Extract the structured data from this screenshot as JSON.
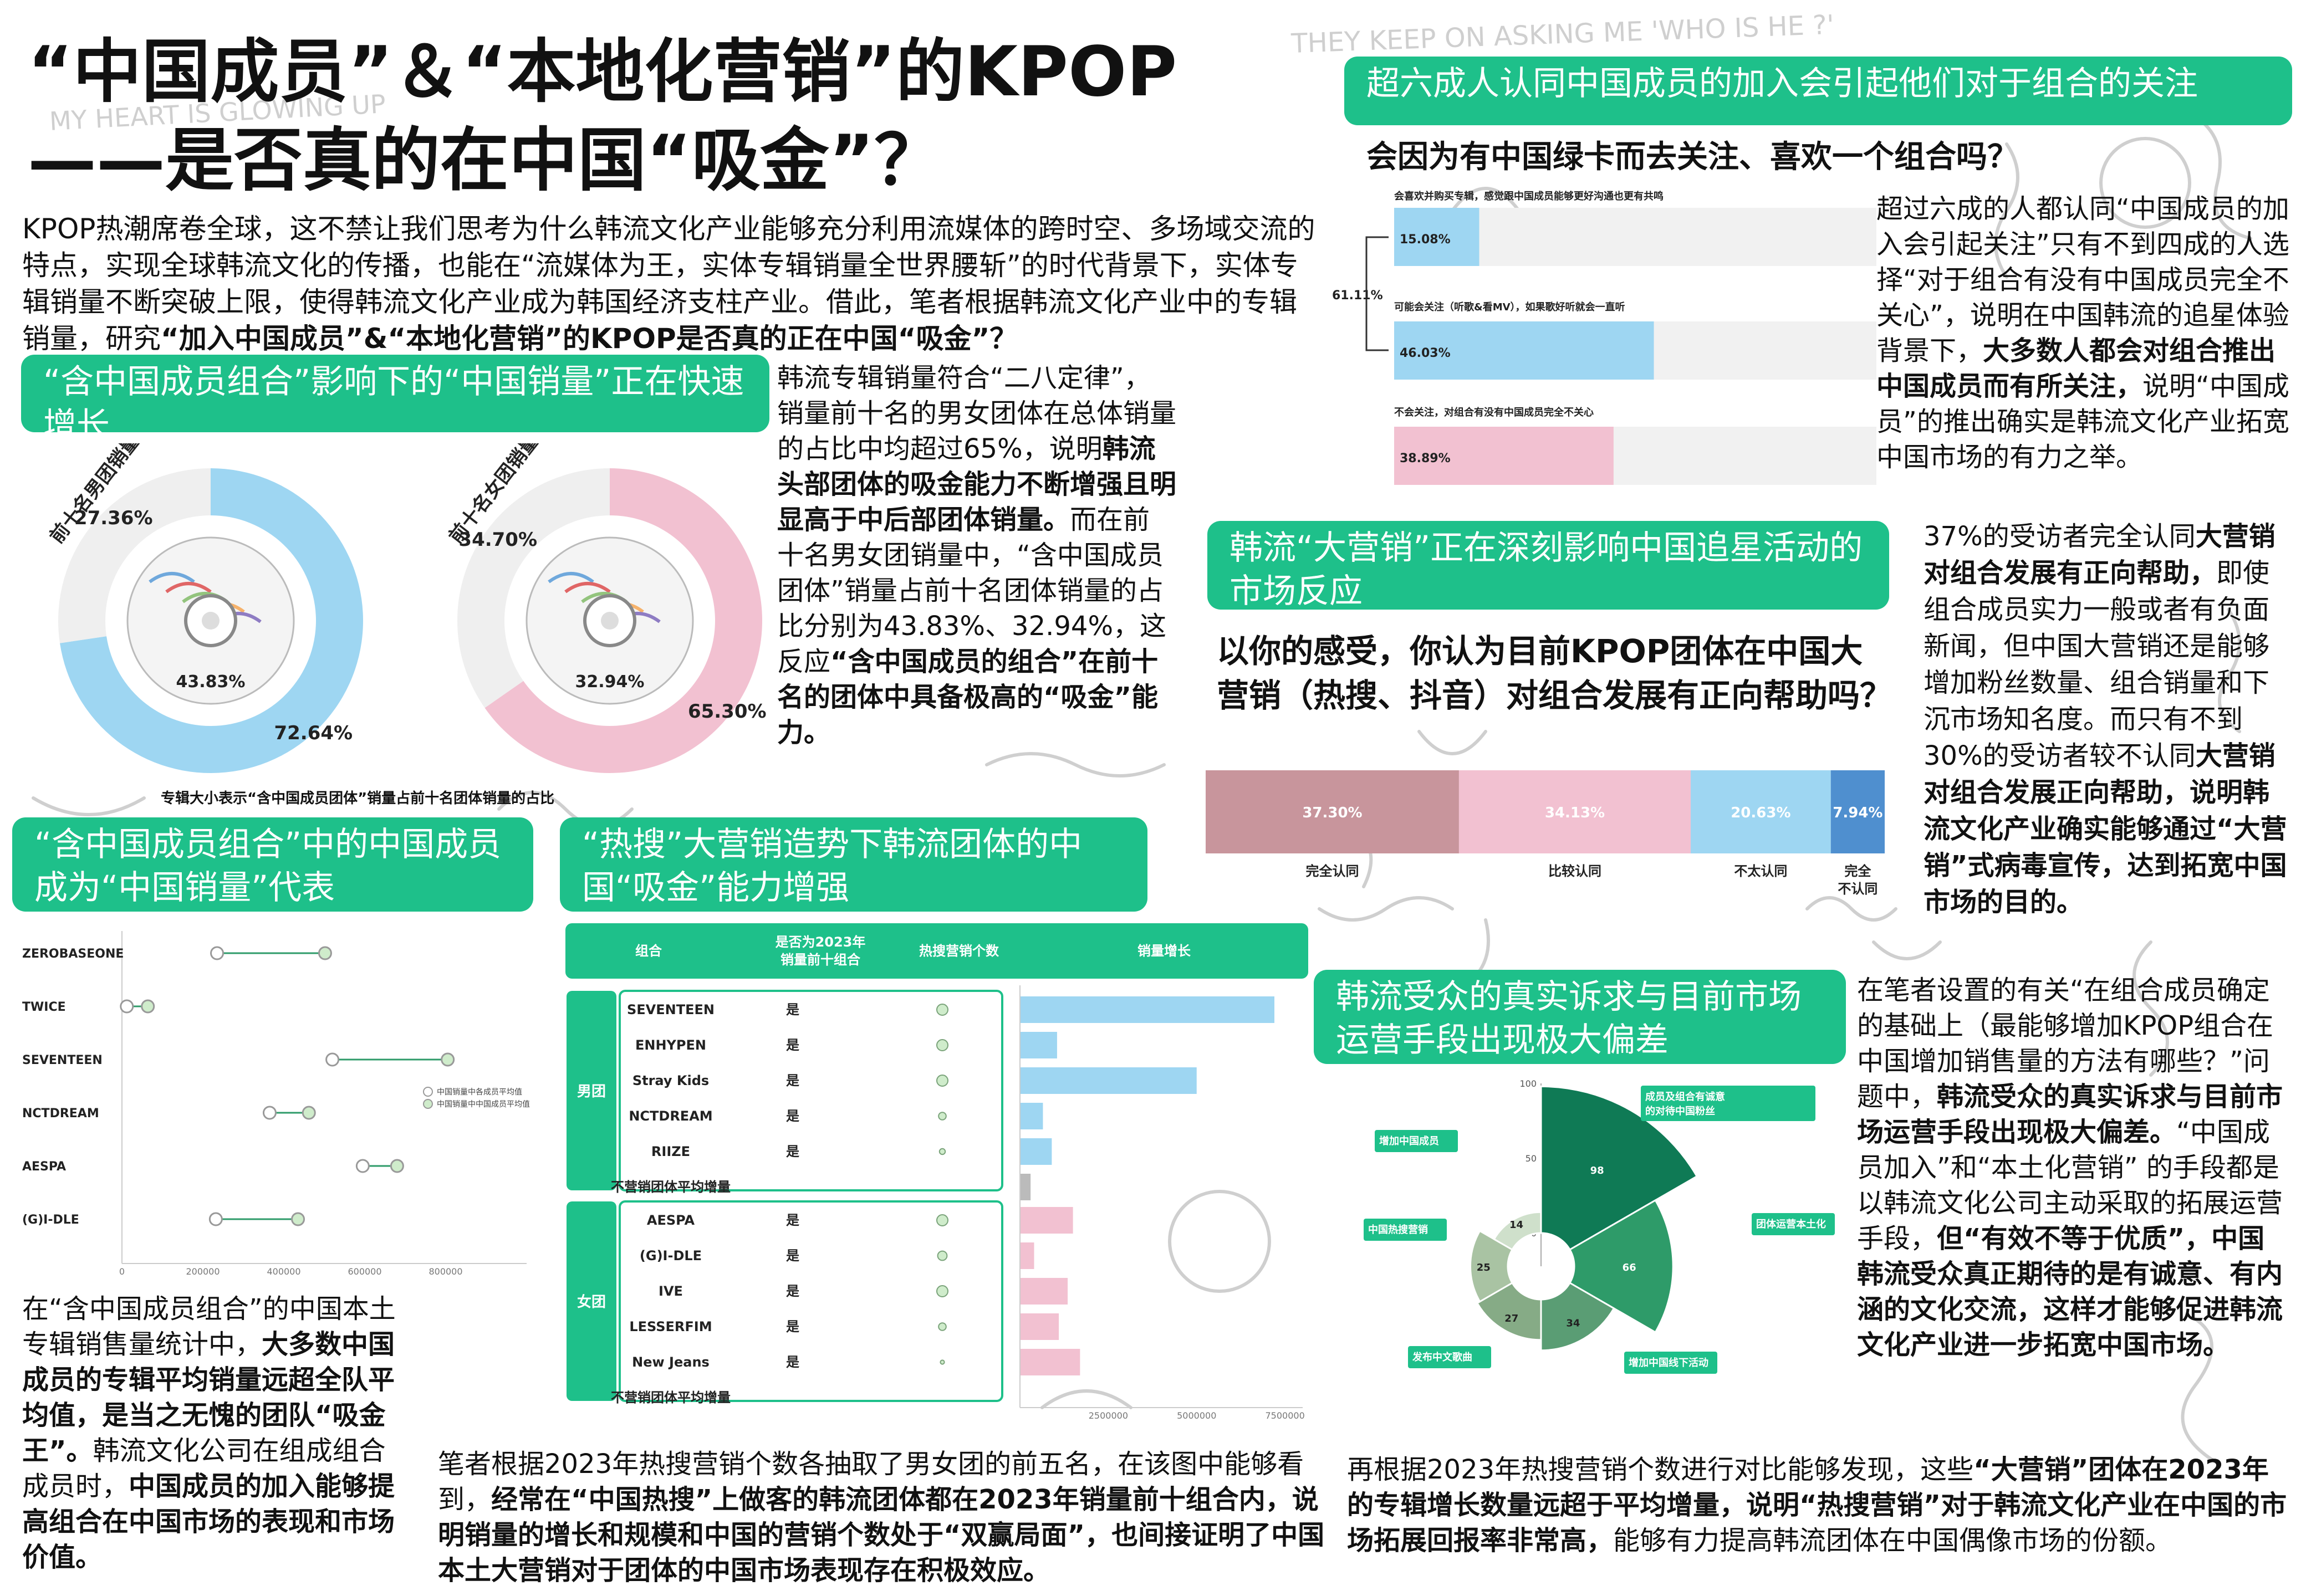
{
  "title": {
    "line1": "“中国成员”＆“本地化营销”的KPOP",
    "line2": "——是否真的在中国“吸金”？"
  },
  "intro": {
    "p1": "KPOP热潮席卷全球，这不禁让我们思考为什么韩流文化产业能够充分利用流媒体的跨时空、多场域交流的特点，实现全球韩流文化的传播，也能在“流媒体为王，实体专辑销量全世界腰斩”的时代背景下，实体专辑销量不断突破上限，使得韩流文化产业成为韩国经济支柱产业。借此，笔者根据韩流文化产业中的专辑销量，研究",
    "p1_bold": "“加入中国成员”&“本地化营销”的KPOP是否真的正在中国“吸金”？"
  },
  "doodle": {
    "top_right": "THEY KEEP ON ASKING ME 'WHO IS HE ?'",
    "top_left": "MY HEART IS GLOWING UP"
  },
  "section1": {
    "banner": "“含中国成员组合”影响下的“中国销量”正在快速增长",
    "caption": "专辑大小表示“含中国成员团体”销量占前十名团体销量的占比",
    "text_a": "韩流专辑销量符合“二八定律”，销量前十名的男女团体在总体销量的占比中均超过65%，说明",
    "text_b": "韩流头部团体的吸金能力不断增强且明显高于中后部团体销量。",
    "text_c": "而在前十名男女团销量中，“含中国成员团体”销量占前十名团体销量的占比分别为43.83%、32.94%，这反应",
    "text_d": "“含中国成员的组合”在前十名的团体中具备极高的“吸金”能力。"
  },
  "section2": {
    "banner": "“含中国成员组合”中的中国成员成为“中国销量”代表",
    "text_a": "在“含中国成员组合”的中国本土专辑销售量统计中，",
    "text_b": "大多数中国成员的专辑平均销量远超全队平均值，是当之无愧的团队“吸金王”。",
    "text_c": "韩流文化公司在组成组合成员时，",
    "text_d": "中国成员的加入能够提高组合在中国市场的表现和市场价值。"
  },
  "section3": {
    "banner": "“热搜”大营销造势下韩流团体的中国“吸金”能力增强",
    "text_a": "笔者根据2023年热搜营销个数各抽取了男女团的前五名，在该图中能够看到，",
    "text_b": "经常在“中国热搜”上做客的韩流团体都在2023年销量前十组合内，说明销量的增长和规模和中国的营销个数处于“双赢局面”，也间接证明了中国本土大营销对于团体的中国市场表现存在积极效应。"
  },
  "section4": {
    "banner": "超六成人认同中国成员的加入会引起他们对于组合的关注",
    "question": "会因为有中国绿卡而去关注、喜欢一个组合吗？",
    "text_a": "超过六成的人都认同“中国成员的加入会引起关注”只有不到四成的人选择“对于组合有没有中国成员完全不关心”，说明在中国韩流的追星体验背景下，",
    "text_b": "大多数人都会对组合推出中国成员而有所关注，",
    "text_c": "说明“中国成员”的推出确实是韩流文化产业拓宽中国市场的有力之举。"
  },
  "section5": {
    "banner": "韩流“大营销”正在深刻影响中国追星活动的市场反应",
    "question": "以你的感受，你认为目前KPOP团体在中国大营销（热搜、抖音）对组合发展有正向帮助吗？",
    "text_a": "37%的受访者完全认同",
    "text_b": "大营销对组合发展有正向帮助，",
    "text_c": "即使组合成员实力一般或者有负面新闻，但中国大营销还是能够增加粉丝数量、组合销量和下沉市场知名度。而只有不到30%的受访者较不认同",
    "text_d": "大营销对组合发展正向帮助，说明韩流文化产业确实能够通过“大营销”式病毒宣传，达到拓宽中国市场的目的。"
  },
  "section6": {
    "banner": "韩流受众的真实诉求与目前市场运营手段出现极大偏差",
    "text_a": "在笔者设置的有关“在组合成员确定的基础上（最能够增加KPOP组合在中国增加销售量的方法有哪些？”问题中，",
    "text_b": "韩流受众的真实诉求与目前市场运营手段出现极大偏差。",
    "text_c": "“中国成员加入”和“本土化营销” 的手段都是以韩流文化公司主动采取的拓展运营手段，",
    "text_d": "但“有效不等于优质”，中国韩流受众真正期待的是有诚意、有内涵的文化交流，这样才能够促进韩流文化产业进一步拓宽中国市场。"
  },
  "section7": {
    "text_a": "再根据2023年热搜营销个数进行对比能够发现，这些",
    "text_b": "“大营销”团体在2023年的专辑增长数量远超于平均增量，说明“热搜营销”对于韩流文化产业在中国的市场拓展回报率非常高，",
    "text_c": "能够有力提高韩流团体在中国偶像市场的份额。"
  },
  "chart_data": [
    {
      "type": "pie",
      "title": "前十名男团销量占男团总体销量比例",
      "slices": [
        {
          "label": "72.64%",
          "value": 72.64
        },
        {
          "label": "27.36%",
          "value": 27.36
        }
      ],
      "inner_label": "43.83%",
      "colors": [
        "#9ed6f2",
        "#efefef"
      ]
    },
    {
      "type": "pie",
      "title": "前十名女团销量占女团总体销量比例",
      "slices": [
        {
          "label": "65.30%",
          "value": 65.3
        },
        {
          "label": "34.70%",
          "value": 34.7
        }
      ],
      "inner_label": "32.94%",
      "colors": [
        "#f2c1d1",
        "#efefef"
      ]
    },
    {
      "type": "scatter",
      "subtype": "dumbbell",
      "categories": [
        "ZEROBASEONE",
        "TWICE",
        "SEVENTEEN",
        "NCTDREAM",
        "AESPA",
        "(G)I-DLE"
      ],
      "series": [
        {
          "name": "中国销量中各成员平均值",
          "values": [
            235000,
            12000,
            520000,
            365000,
            595000,
            232000
          ]
        },
        {
          "name": "中国销量中中国成员平均值",
          "values": [
            502000,
            64000,
            805000,
            462000,
            680000,
            435000
          ]
        }
      ],
      "xlim": [
        0,
        1000000
      ],
      "xticks": [
        "0",
        "200000",
        "400000",
        "600000",
        "800000"
      ],
      "colors": [
        "#ffffff",
        "#cfeccb"
      ]
    },
    {
      "type": "table",
      "columns": [
        "组合",
        "是否为2023年销量前十组合",
        "热搜营销个数",
        "销量增长"
      ],
      "groups": [
        {
          "name": "男团",
          "color": "#9ed6f2",
          "rows": [
            {
              "name": "SEVENTEEN",
              "top10": "是",
              "hot": 5,
              "growth": 7200000
            },
            {
              "name": "ENHYPEN",
              "top10": "是",
              "hot": 5,
              "growth": 1050000
            },
            {
              "name": "Stray Kids",
              "top10": "是",
              "hot": 5,
              "growth": 5000000
            },
            {
              "name": "NCTDREAM",
              "top10": "是",
              "hot": 3,
              "growth": 650000
            },
            {
              "name": "RIIZE",
              "top10": "是",
              "hot": 2,
              "growth": 900000
            },
            {
              "name": "不营销团体平均增量",
              "top10": "",
              "hot": 0,
              "growth": 300000
            }
          ]
        },
        {
          "name": "女团",
          "color": "#f2c1d1",
          "rows": [
            {
              "name": "AESPA",
              "top10": "是",
              "hot": 5,
              "growth": 1500000
            },
            {
              "name": "(G)I-DLE",
              "top10": "是",
              "hot": 4,
              "growth": 400000
            },
            {
              "name": "IVE",
              "top10": "是",
              "hot": 5,
              "growth": 1350000
            },
            {
              "name": "LESSERFIM",
              "top10": "是",
              "hot": 3,
              "growth": 1100000
            },
            {
              "name": "New Jeans",
              "top10": "是",
              "hot": 1,
              "growth": 1700000
            },
            {
              "name": "不营销团体平均增量",
              "top10": "",
              "hot": 0,
              "growth": 0
            }
          ]
        }
      ],
      "xticks": [
        "2500000",
        "5000000",
        "7500000"
      ],
      "xlim": [
        0,
        8000000
      ]
    },
    {
      "type": "bar",
      "orientation": "horizontal",
      "title": "会喜欢并购买专辑，感觉跟中国成员能够更好沟通也更有共鸣",
      "categories": [
        "会喜欢并购买专辑，感觉跟中国成员能够更好沟通也更有共鸣",
        "可能会关注（听歌&看MV），如果歌好听就会一直听",
        "不会关注，对组合有没有中国成员完全不关心"
      ],
      "values": [
        15.08,
        46.03,
        38.89
      ],
      "labels": [
        "15.08%",
        "46.03%",
        "38.89%"
      ],
      "bracket_label": "61.11%",
      "colors": [
        "#9ed6f2",
        "#9ed6f2",
        "#f2c1d1"
      ]
    },
    {
      "type": "bar",
      "orientation": "horizontal",
      "stacked": true,
      "categories": [
        "完全认同",
        "比较认同",
        "不太认同",
        "完全不认同"
      ],
      "values": [
        37.3,
        34.13,
        20.63,
        7.94
      ],
      "labels": [
        "37.30%",
        "34.13%",
        "20.63%",
        "7.94%"
      ],
      "colors": [
        "#c8959c",
        "#f2c1d1",
        "#9ed6f2",
        "#4f8fcf"
      ]
    },
    {
      "type": "pie",
      "subtype": "rose",
      "slices": [
        {
          "label": "成员及组合有诚意的对待中国粉丝",
          "value": 98
        },
        {
          "label": "团体运营本土化",
          "value": 66
        },
        {
          "label": "增加中国线下活动",
          "value": 34
        },
        {
          "label": "发布中文歌曲",
          "value": 27
        },
        {
          "label": "中国热搜营销",
          "value": 25
        },
        {
          "label": "增加中国成员",
          "value": 14
        }
      ],
      "rticks": [
        "100",
        "50",
        "0"
      ],
      "colors": [
        "#0f7a55",
        "#2e9b69",
        "#5a9d74",
        "#86ab86",
        "#a9c3a3",
        "#cfe0cb"
      ]
    }
  ]
}
